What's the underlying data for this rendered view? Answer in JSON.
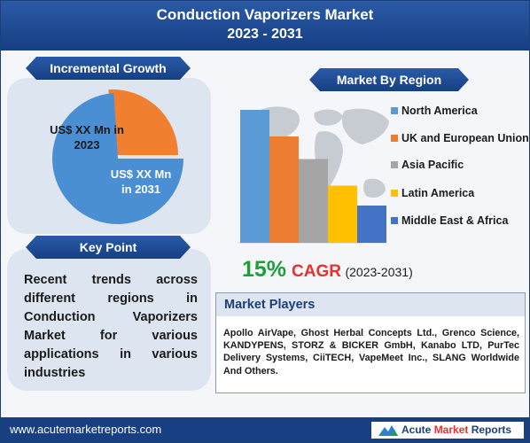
{
  "header": {
    "title_line1": "Conduction Vaporizers Market",
    "title_line2": "2023 - 2031"
  },
  "incremental_growth": {
    "title": "Incremental Growth",
    "label_2023": "US$ XX Mn in 2023",
    "label_2031": "US$ XX Mn in 2031",
    "colors": {
      "2023": "#f08030",
      "2031": "#4a8ed4"
    }
  },
  "key_point": {
    "title": "Key Point",
    "text": "Recent trends across different regions in Conduction Vaporizers Market for various applications in various industries"
  },
  "region": {
    "title": "Market By Region"
  },
  "chart_data": [
    {
      "type": "pie",
      "labels": [
        "US$ XX Mn in 2023",
        "US$ XX Mn in 2031"
      ],
      "values": [
        26,
        74
      ],
      "colors": [
        "#f08030",
        "#4a8ed4"
      ]
    },
    {
      "type": "bar",
      "categories": [
        "North America",
        "UK and European Union",
        "Asia Pacific",
        "Latin America",
        "Middle East & Africa"
      ],
      "values": [
        100,
        80,
        63,
        43,
        28
      ],
      "colors": [
        "#5b9bd5",
        "#ed7d31",
        "#a5a5a5",
        "#ffc000",
        "#4472c4"
      ],
      "legend_position": "right",
      "grid": false
    }
  ],
  "cagr": {
    "value": "15%",
    "label": "CAGR",
    "period": "(2023-2031)"
  },
  "market_players": {
    "title": "Market Players",
    "text": "Apollo AirVape, Ghost Herbal Concepts Ltd., Grenco Science, KANDYPENS, STORZ & BICKER GmbH, Kanabo LTD, PurTec Delivery Systems, CiiTECH, VapeMeet Inc., SLANG Worldwide And Others."
  },
  "footer": {
    "url": "www.acutemarketreports.com",
    "brand_part1": "Acute ",
    "brand_part2": "Market",
    "brand_part3": " Reports"
  }
}
